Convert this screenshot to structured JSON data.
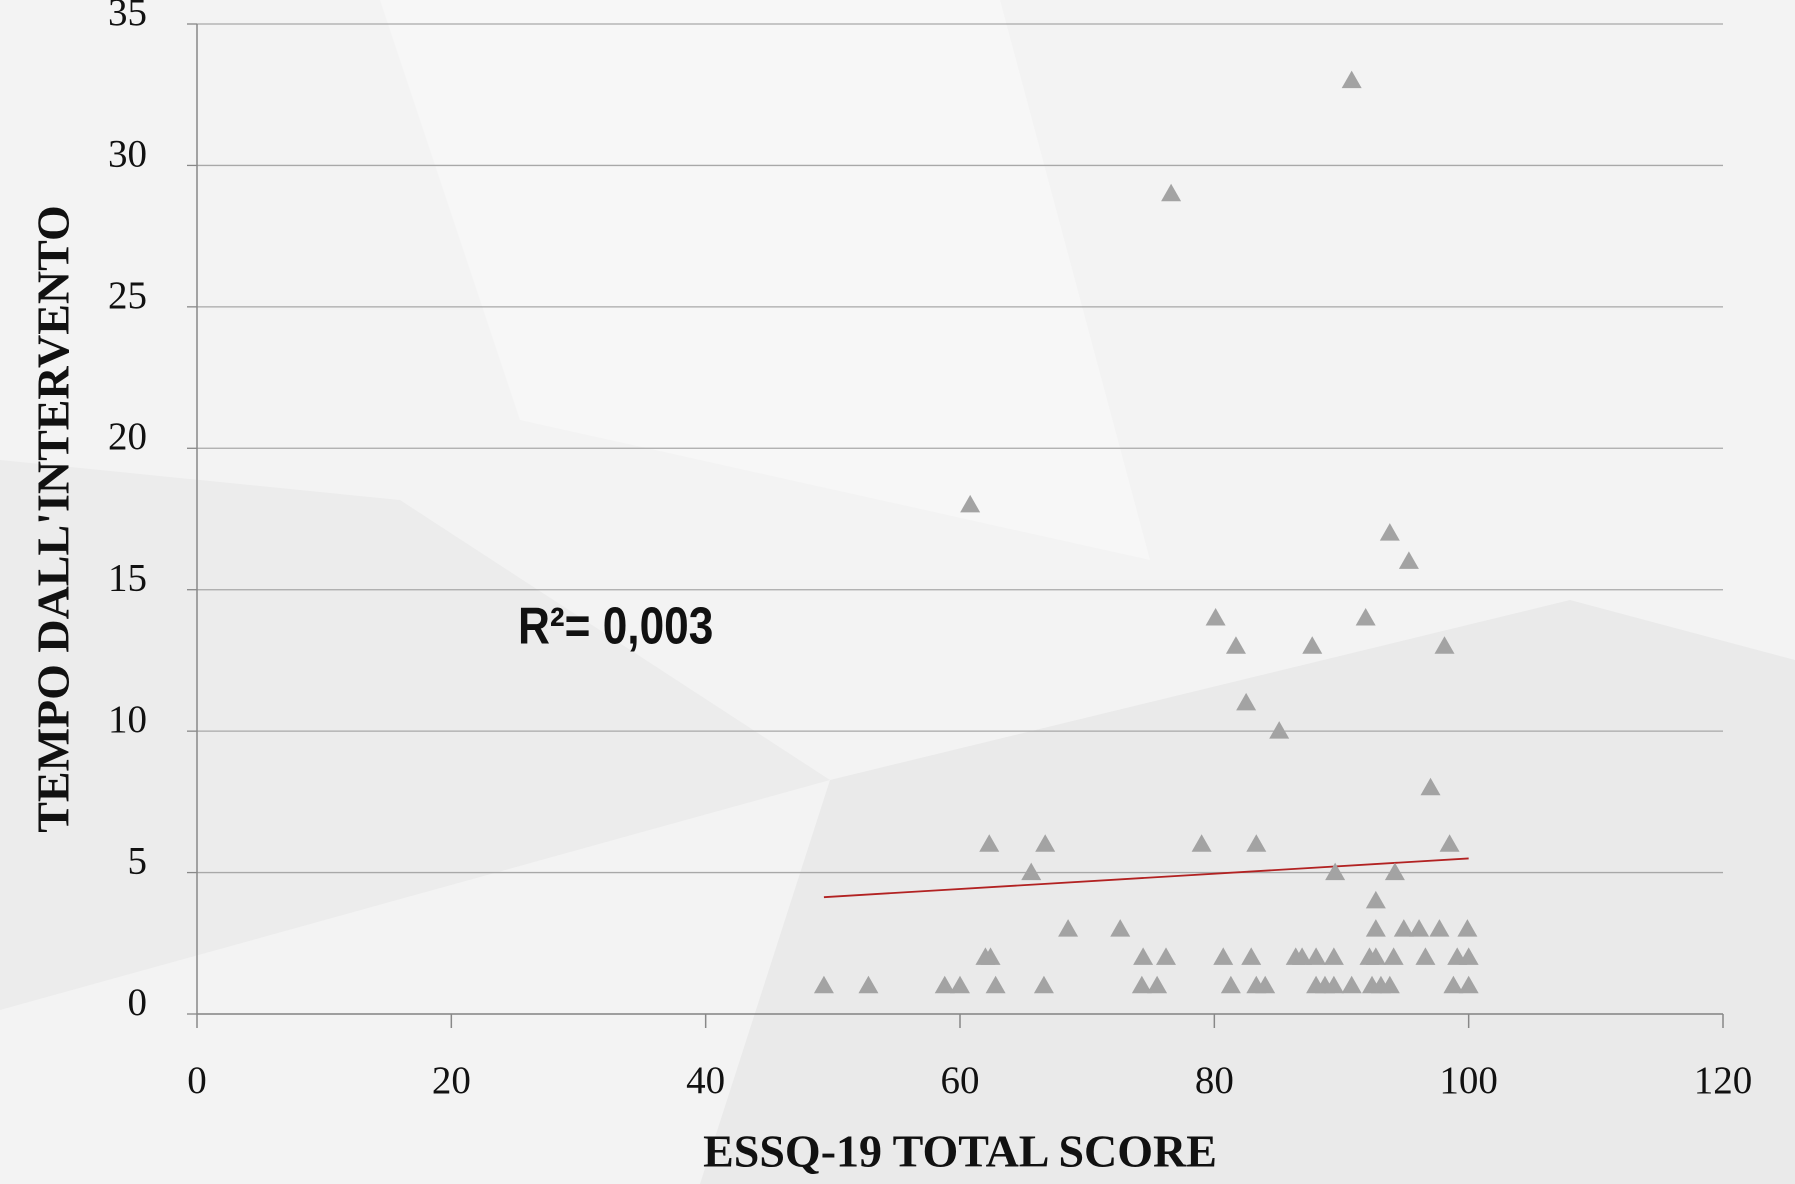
{
  "chart_data": {
    "type": "scatter",
    "x_label": "ESSQ-19 TOTAL SCORE",
    "y_label": "TEMPO DALL'INTERVENTO",
    "annotation": "R²= 0,003",
    "marker_color": "#a3a3a3",
    "trendline": {
      "color": "#b22222",
      "x": [
        49.3,
        100
      ],
      "y": [
        4.13,
        5.5
      ]
    },
    "x": [
      49.3,
      52.8,
      58.8,
      60.0,
      60.8,
      62.0,
      62.4,
      62.3,
      62.8,
      65.6,
      66.6,
      66.7,
      68.5,
      72.6,
      74.4,
      74.3,
      75.5,
      76.2,
      76.6,
      79.0,
      80.1,
      80.7,
      81.3,
      81.7,
      82.5,
      82.9,
      83.3,
      83.3,
      84.0,
      85.1,
      86.4,
      86.9,
      87.7,
      88.0,
      88.0,
      88.7,
      89.4,
      89.5,
      89.4,
      90.8,
      90.8,
      91.9,
      92.2,
      92.4,
      92.7,
      92.7,
      92.7,
      93.1,
      93.8,
      93.8,
      94.1,
      94.2,
      94.9,
      95.3,
      96.1,
      96.6,
      97.0,
      97.7,
      98.1,
      98.5,
      98.8,
      99.1,
      99.9,
      100,
      100
    ],
    "values": [
      1,
      1,
      1,
      1,
      18,
      2,
      2,
      6,
      1,
      5,
      1,
      6,
      3,
      3,
      2,
      1,
      1,
      2,
      29,
      6,
      14,
      2,
      1,
      13,
      11,
      2,
      6,
      1,
      1,
      10,
      2,
      2,
      13,
      2,
      1,
      1,
      2,
      5,
      1,
      33,
      1,
      14,
      2,
      1,
      4,
      3,
      2,
      1,
      17,
      1,
      2,
      5,
      3,
      16,
      3,
      2,
      8,
      3,
      13,
      6,
      1,
      2,
      3,
      2,
      1
    ],
    "xlim": [
      0,
      120
    ],
    "xticks": [
      0,
      20,
      40,
      60,
      80,
      100,
      120
    ],
    "ylim": [
      0,
      35
    ],
    "yticks": [
      0,
      5,
      10,
      15,
      20,
      25,
      30,
      35
    ],
    "grid": true
  }
}
